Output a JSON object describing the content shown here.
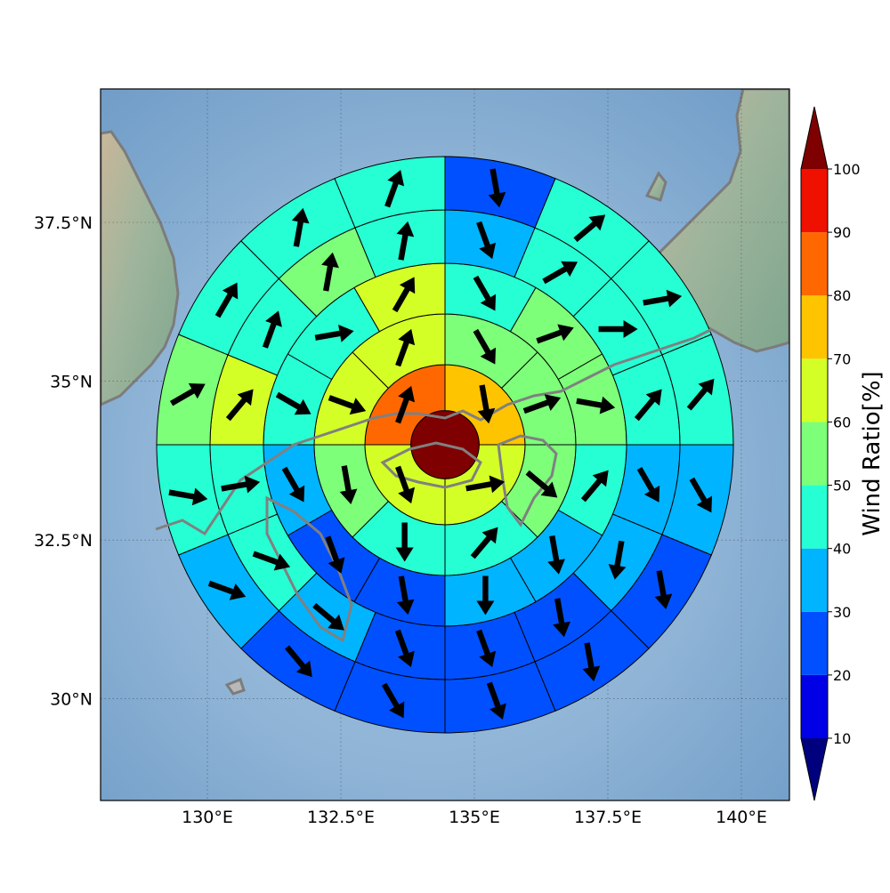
{
  "chart_data": {
    "type": "polar-sector map",
    "x_ticks": [
      "130°E",
      "132.5°E",
      "135°E",
      "137.5°E",
      "140°E"
    ],
    "x_tick_values": [
      130,
      132.5,
      135,
      137.5,
      140
    ],
    "y_ticks": [
      "30°N",
      "32.5°N",
      "35°N",
      "37.5°N"
    ],
    "y_tick_values": [
      30,
      32.5,
      35,
      37.5
    ],
    "xlim": [
      128.0,
      140.9
    ],
    "ylim": [
      28.4,
      39.6
    ],
    "center": {
      "lon": 134.45,
      "lat": 34.0
    },
    "ring_radii_deg": [
      0.64,
      1.5,
      2.45,
      3.4,
      4.4,
      5.4
    ],
    "sectors_per_ring": [
      1,
      4,
      8,
      12,
      16,
      16
    ],
    "wind_ratio": [
      [
        100
      ],
      [
        70,
        60,
        60,
        80
      ],
      [
        50,
        50,
        50,
        40,
        40,
        50,
        60,
        60
      ],
      [
        40,
        50,
        50,
        40,
        30,
        30,
        20,
        20,
        30,
        40,
        40,
        60
      ],
      [
        30,
        40,
        40,
        40,
        30,
        30,
        20,
        20,
        20,
        30,
        40,
        40,
        60,
        40,
        50,
        40
      ],
      [
        20,
        40,
        40,
        40,
        30,
        20,
        20,
        20,
        20,
        20,
        30,
        40,
        50,
        40,
        40,
        40
      ]
    ],
    "wind_direction_deg": [
      [
        0
      ],
      [
        170,
        80,
        160,
        20
      ],
      [
        150,
        70,
        130,
        40,
        180,
        170,
        110,
        20
      ],
      [
        150,
        70,
        100,
        40,
        170,
        180,
        170,
        160,
        150,
        120,
        80,
        30
      ],
      [
        160,
        60,
        90,
        40,
        150,
        190,
        170,
        160,
        160,
        130,
        110,
        80,
        40,
        20,
        10,
        10
      ],
      [
        170,
        50,
        80,
        40,
        150,
        170,
        170,
        160,
        150,
        140,
        110,
        100,
        60,
        30,
        10,
        20
      ]
    ],
    "colorbar": {
      "label": "Wind Ratio[%]",
      "ticks": [
        "10",
        "20",
        "30",
        "40",
        "50",
        "60",
        "70",
        "80",
        "90",
        "100"
      ],
      "levels": [
        10,
        20,
        30,
        40,
        50,
        60,
        70,
        80,
        90,
        100
      ],
      "colors": [
        "#0000e6",
        "#0050ff",
        "#00b4ff",
        "#26ffd4",
        "#7dff7a",
        "#d4ff26",
        "#ffc400",
        "#ff6800",
        "#f01000"
      ],
      "under_color": "#00007f",
      "over_color": "#7f0000",
      "extend": "both"
    },
    "grid": true
  }
}
